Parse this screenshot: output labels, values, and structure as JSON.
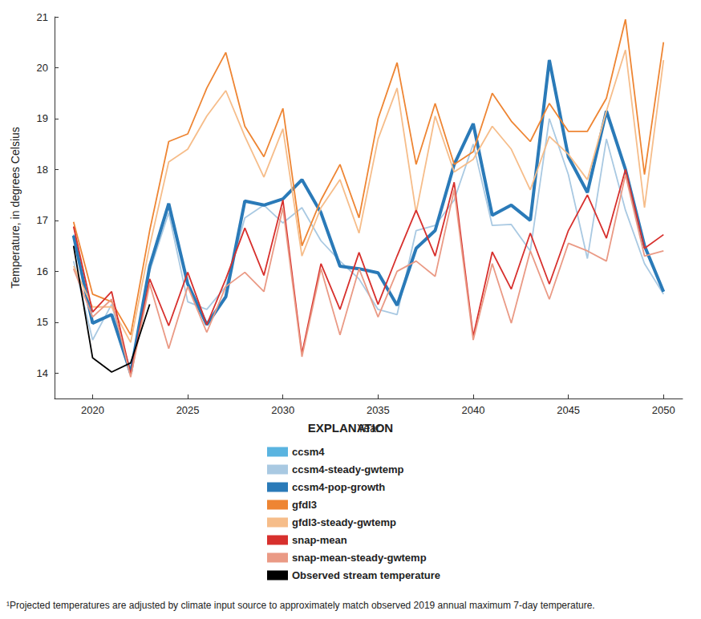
{
  "chart_data": {
    "type": "line",
    "x_label": "Year",
    "y_label": "Temperature, in degrees Celsius",
    "legend_title": "EXPLANATION",
    "footnote": "¹Projected temperatures are adjusted by climate input source to approximately match observed 2019 annual maximum 7-day temperature.",
    "x": [
      2019,
      2020,
      2021,
      2022,
      2023,
      2024,
      2025,
      2026,
      2027,
      2028,
      2029,
      2030,
      2031,
      2032,
      2033,
      2034,
      2035,
      2036,
      2037,
      2038,
      2039,
      2040,
      2041,
      2042,
      2043,
      2044,
      2045,
      2046,
      2047,
      2048,
      2049,
      2050
    ],
    "xlim": [
      2018,
      2051
    ],
    "xticks": [
      2020,
      2025,
      2030,
      2035,
      2040,
      2045,
      2050
    ],
    "ylim": [
      13.5,
      21
    ],
    "yticks": [
      14,
      15,
      16,
      17,
      18,
      19,
      20,
      21
    ],
    "grid": false,
    "legend": "bottom",
    "series": [
      {
        "name": "ccsm4",
        "color": "#5ab4e0",
        "line_style": "solid",
        "values": [
          16.72,
          15.0,
          15.15,
          14.0,
          16.1,
          17.33,
          15.75,
          14.95,
          15.5,
          17.38,
          17.3,
          17.42,
          17.8,
          17.15,
          16.1,
          16.05,
          15.97,
          15.33,
          16.45,
          16.8,
          18.1,
          18.9,
          17.1,
          17.3,
          17.0,
          20.15,
          18.25,
          17.55,
          19.15,
          18.0,
          16.5,
          15.6
        ]
      },
      {
        "name": "ccsm4-steady-gwtemp",
        "color": "#a9c9e2",
        "line_style": "solid",
        "values": [
          16.2,
          14.65,
          15.35,
          13.95,
          16.0,
          17.15,
          15.4,
          15.25,
          15.7,
          17.05,
          17.3,
          16.95,
          17.25,
          16.6,
          16.2,
          15.85,
          15.25,
          15.15,
          16.8,
          16.9,
          17.4,
          18.5,
          16.9,
          16.92,
          16.4,
          19.0,
          17.9,
          16.25,
          18.6,
          17.2,
          16.15,
          15.55
        ]
      },
      {
        "name": "ccsm4-pop-growth",
        "color": "#2a7ab8",
        "line_style": "thick",
        "values": [
          16.7,
          14.98,
          15.15,
          14.0,
          16.1,
          17.33,
          15.75,
          14.95,
          15.5,
          17.38,
          17.3,
          17.42,
          17.8,
          17.15,
          16.1,
          16.05,
          15.97,
          15.33,
          16.45,
          16.8,
          18.1,
          18.9,
          17.1,
          17.3,
          17.0,
          20.15,
          18.25,
          17.55,
          19.15,
          18.0,
          16.5,
          15.6
        ]
      },
      {
        "name": "gfdl3",
        "color": "#ee8533",
        "line_style": "solid",
        "values": [
          16.97,
          15.55,
          15.4,
          14.75,
          16.8,
          18.55,
          18.7,
          19.6,
          20.3,
          18.85,
          18.25,
          19.2,
          16.5,
          17.4,
          18.1,
          17.05,
          19.0,
          20.1,
          18.1,
          19.3,
          18.1,
          18.35,
          19.5,
          18.95,
          18.55,
          19.3,
          18.75,
          18.75,
          19.4,
          20.95,
          17.9,
          20.5
        ]
      },
      {
        "name": "gfdl3-steady-gwtemp",
        "color": "#f6bd8a",
        "line_style": "solid",
        "values": [
          16.1,
          15.3,
          15.3,
          14.6,
          16.5,
          18.15,
          18.4,
          19.05,
          19.55,
          18.65,
          17.85,
          18.8,
          16.3,
          17.25,
          17.8,
          16.75,
          18.6,
          19.6,
          17.15,
          19.05,
          17.95,
          18.2,
          18.85,
          18.4,
          17.6,
          18.65,
          18.3,
          17.8,
          19.15,
          20.35,
          17.25,
          20.15
        ]
      },
      {
        "name": "snap-mean",
        "color": "#d7302d",
        "line_style": "solid",
        "values": [
          16.88,
          15.2,
          15.6,
          13.97,
          15.85,
          14.93,
          15.98,
          14.95,
          15.85,
          16.85,
          15.92,
          17.4,
          14.38,
          16.15,
          15.25,
          16.37,
          15.35,
          16.3,
          17.2,
          16.3,
          17.75,
          14.72,
          16.38,
          15.65,
          16.75,
          15.75,
          16.8,
          17.5,
          16.65,
          18.0,
          16.45,
          16.72
        ]
      },
      {
        "name": "snap-mean-steady-gwtemp",
        "color": "#ea9a85",
        "line_style": "solid",
        "values": [
          16.05,
          15.1,
          15.45,
          13.92,
          15.75,
          14.48,
          15.7,
          14.8,
          15.7,
          15.98,
          15.6,
          17.25,
          14.32,
          16.05,
          14.75,
          16.05,
          15.1,
          16.0,
          16.2,
          15.9,
          17.6,
          14.65,
          16.15,
          14.98,
          16.4,
          15.45,
          16.55,
          16.4,
          16.2,
          17.9,
          16.3,
          16.4
        ]
      },
      {
        "name": "Observed stream temperature",
        "color": "#000000",
        "line_style": "solid",
        "values": [
          16.5,
          14.3,
          14.02,
          14.2,
          15.35,
          null,
          null,
          null,
          null,
          null,
          null,
          null,
          null,
          null,
          null,
          null,
          null,
          null,
          null,
          null,
          null,
          null,
          null,
          null,
          null,
          null,
          null,
          null,
          null,
          null,
          null,
          null
        ]
      }
    ]
  }
}
